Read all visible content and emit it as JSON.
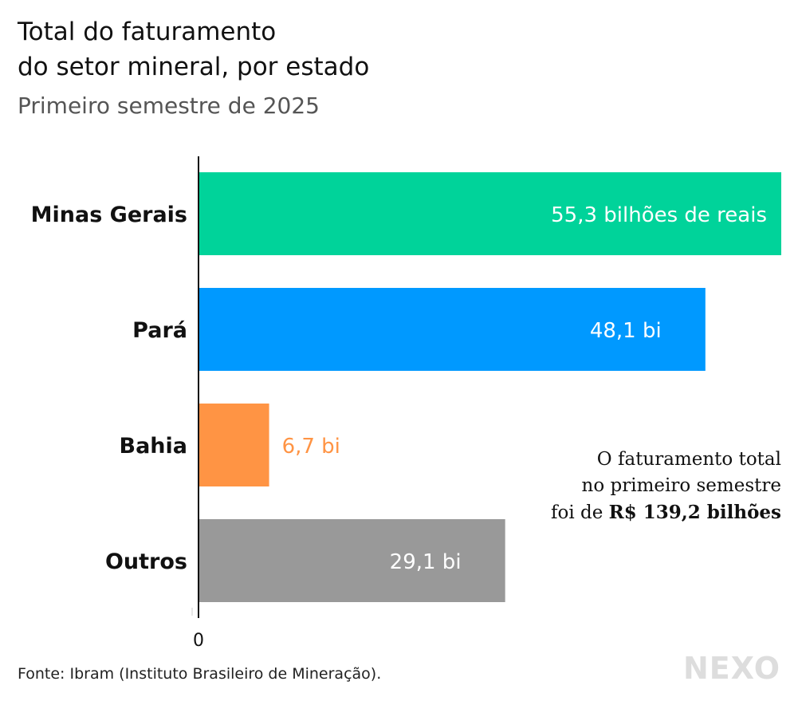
{
  "title": "Total do faturamento\ndo setor mineral, por estado",
  "subtitle": "Primeiro semestre de 2025",
  "chart_data": {
    "type": "bar",
    "orientation": "horizontal",
    "categories": [
      "Minas Gerais",
      "Pará",
      "Bahia",
      "Outros"
    ],
    "values": [
      55.3,
      48.1,
      6.7,
      29.1
    ],
    "data_labels": [
      "55,3 bilhões de reais",
      "48,1 bi",
      "6,7 bi",
      "29,1 bi"
    ],
    "colors": [
      "#00d39a",
      "#0099ff",
      "#ff9444",
      "#999999"
    ],
    "x_tick_labels": [
      "0"
    ],
    "xlim": [
      0,
      55.3
    ],
    "grid": false
  },
  "note": {
    "prefix_line1": "O faturamento total",
    "line2": "no primeiro semestre",
    "line3_prefix": "foi de ",
    "line3_bold": "R$ 139,2 bilhões"
  },
  "source": "Fonte: Ibram (Instituto Brasileiro de Mineração).",
  "logo": "NEXO"
}
